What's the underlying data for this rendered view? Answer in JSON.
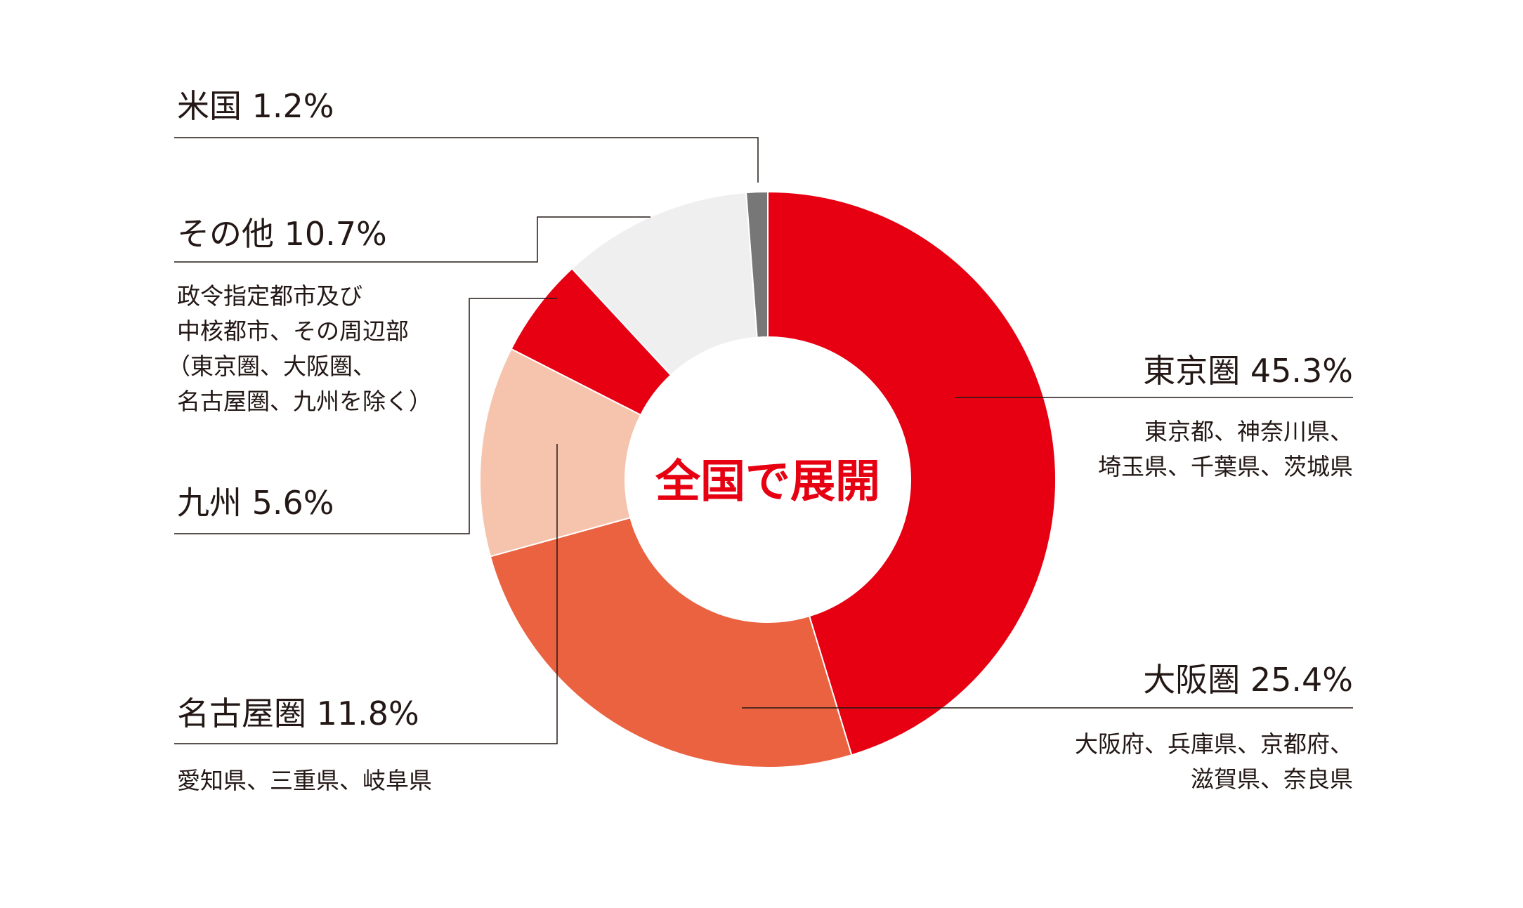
{
  "chart_data": {
    "type": "pie",
    "variant": "donut",
    "center_label": "全国で展開",
    "slices": [
      {
        "name": "東京圏",
        "value": 45.3,
        "label": "東京圏 45.3%",
        "color": "#e60012",
        "description": [
          "東京都、神奈川県、",
          "埼玉県、千葉県、茨城県"
        ]
      },
      {
        "name": "大阪圏",
        "value": 25.4,
        "label": "大阪圏 25.4%",
        "color": "#ea6240",
        "description": [
          "大阪府、兵庫県、京都府、",
          "滋賀県、奈良県"
        ]
      },
      {
        "name": "名古屋圏",
        "value": 11.8,
        "label": "名古屋圏 11.8%",
        "color": "#f6c4ad",
        "description": [
          "愛知県、三重県、岐阜県"
        ]
      },
      {
        "name": "九州",
        "value": 5.6,
        "label": "九州 5.6%",
        "color": "#e60012",
        "description": []
      },
      {
        "name": "その他",
        "value": 10.7,
        "label": "その他 10.7%",
        "color": "#efefef",
        "description": [
          "政令指定都市及び",
          "中核都市、その周辺部",
          "（東京圏、大阪圏、",
          "名古屋圏、九州を除く）"
        ]
      },
      {
        "name": "米国",
        "value": 1.2,
        "label": "米国 1.2%",
        "color": "#777777",
        "description": []
      }
    ],
    "center_label_color": "#e60012",
    "leader_line_color": "#231815"
  }
}
